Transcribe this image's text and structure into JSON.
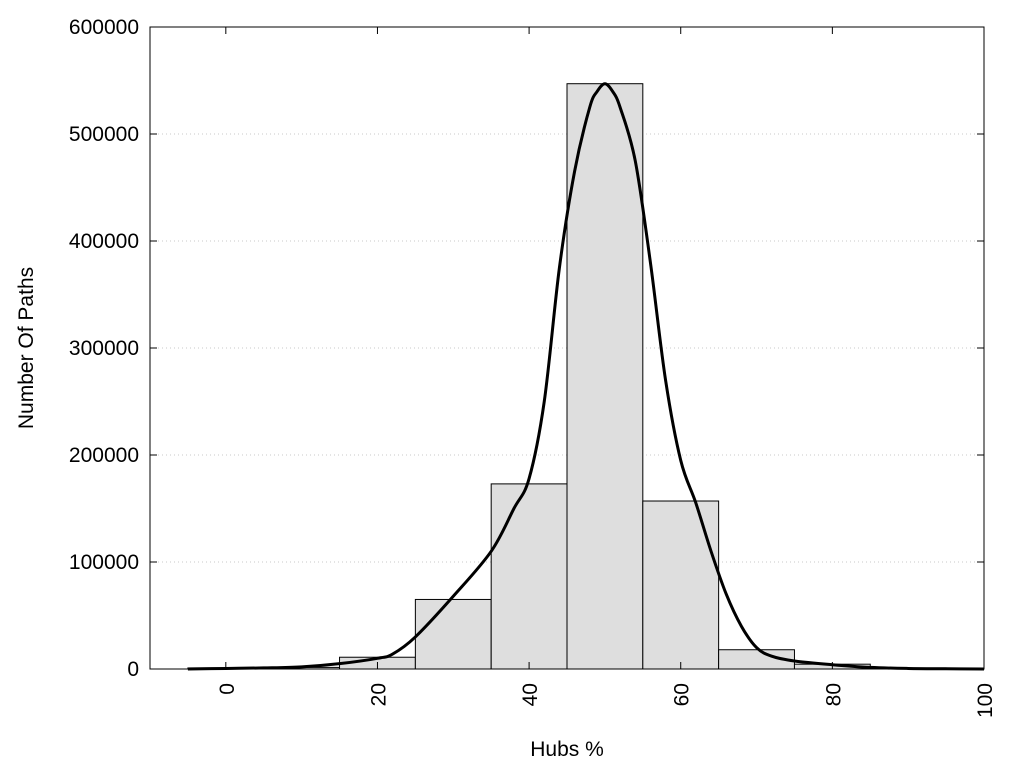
{
  "chart_data": {
    "type": "bar",
    "title": "",
    "xlabel": "Hubs %",
    "ylabel": "Number Of Paths",
    "xlim": [
      -10,
      100
    ],
    "ylim": [
      0,
      600000
    ],
    "x_ticks": [
      "0",
      "20",
      "40",
      "60",
      "80",
      "100"
    ],
    "y_ticks": [
      "0",
      "100000",
      "200000",
      "300000",
      "400000",
      "500000",
      "600000"
    ],
    "grid": "horizontal-dotted",
    "bins": [
      {
        "from": -5,
        "to": 5,
        "value": 1000
      },
      {
        "from": 5,
        "to": 15,
        "value": 1500
      },
      {
        "from": 15,
        "to": 25,
        "value": 11000
      },
      {
        "from": 25,
        "to": 35,
        "value": 65000
      },
      {
        "from": 35,
        "to": 45,
        "value": 173000
      },
      {
        "from": 45,
        "to": 55,
        "value": 547000
      },
      {
        "from": 55,
        "to": 65,
        "value": 157000
      },
      {
        "from": 65,
        "to": 75,
        "value": 18000
      },
      {
        "from": 75,
        "to": 85,
        "value": 4500
      },
      {
        "from": 85,
        "to": 95,
        "value": 1000
      },
      {
        "from": 95,
        "to": 100,
        "value": 300
      }
    ],
    "fit_curve": {
      "x": [
        -5,
        0,
        5,
        10,
        15,
        20,
        22,
        25,
        30,
        35,
        38,
        40,
        42,
        44,
        46,
        48,
        49,
        50,
        51,
        52,
        54,
        56,
        58,
        60,
        62,
        64,
        66,
        68,
        70,
        72,
        75,
        80,
        85,
        90,
        95,
        100
      ],
      "y": [
        0,
        500,
        1000,
        2000,
        5000,
        10000,
        14000,
        30000,
        68000,
        110000,
        150000,
        178000,
        250000,
        375000,
        465000,
        525000,
        540000,
        547000,
        540000,
        525000,
        475000,
        380000,
        270000,
        195000,
        155000,
        110000,
        70000,
        40000,
        20000,
        12000,
        7500,
        4000,
        1500,
        500,
        200,
        0
      ]
    }
  }
}
